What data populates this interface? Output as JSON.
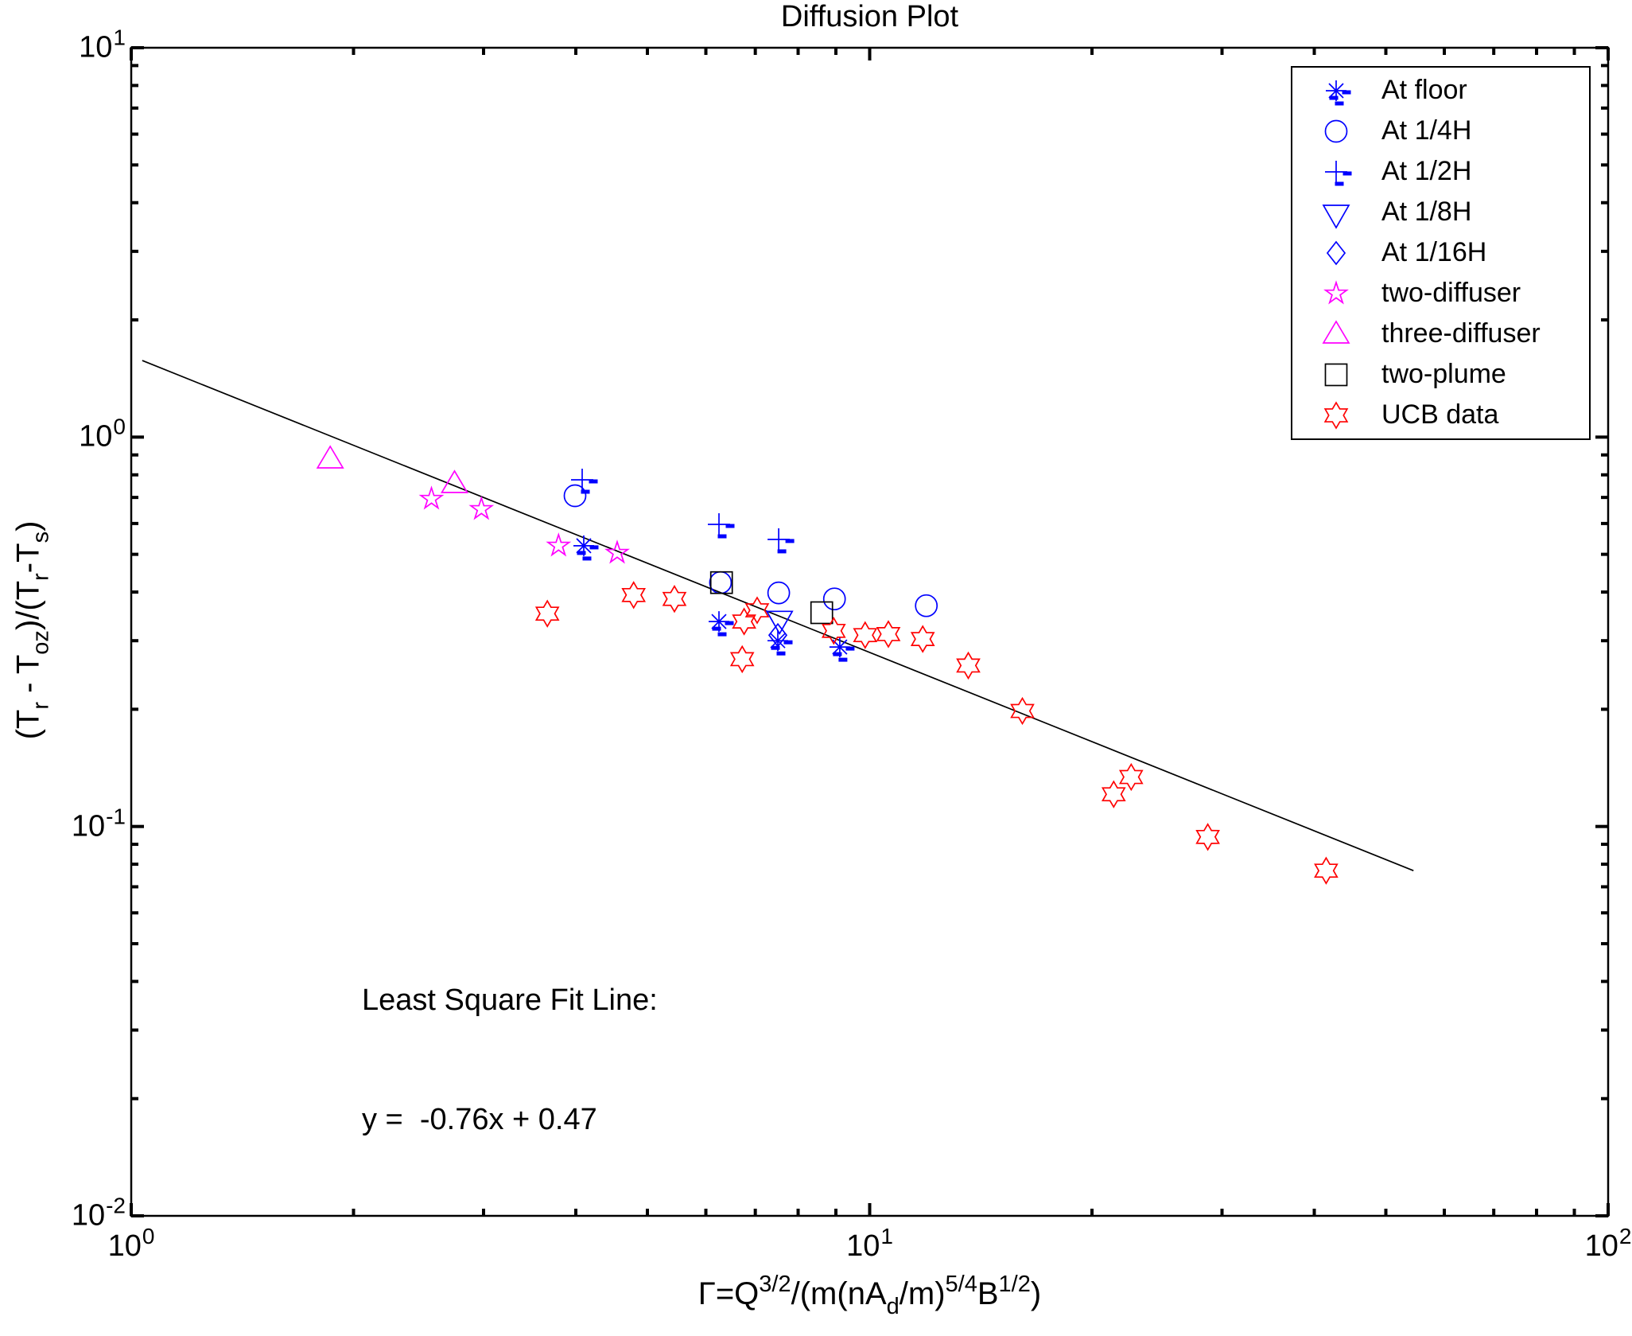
{
  "title": "Diffusion Plot",
  "axes": {
    "x": {
      "scale": "log",
      "range": [
        1,
        100
      ],
      "tick_exponents": [
        0,
        1,
        2
      ],
      "label_rich": [
        {
          "t": "Γ=Q"
        },
        {
          "sup": "3/2"
        },
        {
          "t": "/(m(nA"
        },
        {
          "sub": "d"
        },
        {
          "t": "/m)"
        },
        {
          "sup": "5/4"
        },
        {
          "t": "B"
        },
        {
          "sup": "1/2"
        },
        {
          "t": ")"
        }
      ]
    },
    "y": {
      "scale": "log",
      "range": [
        0.01,
        10
      ],
      "tick_exponents": [
        1,
        0,
        -1,
        -2
      ],
      "label_rich": [
        {
          "t": "(T"
        },
        {
          "sub": "r"
        },
        {
          "t": " - T"
        },
        {
          "sub": "oz"
        },
        {
          "t": ")/(T"
        },
        {
          "sub": "r"
        },
        {
          "t": "-T"
        },
        {
          "sub": "s"
        },
        {
          "t": ")"
        }
      ]
    }
  },
  "annotation": {
    "line1": "Least Square Fit Line:",
    "line2": "y =  -0.76x + 0.47"
  },
  "legend": {
    "items": [
      {
        "label": "At floor",
        "marker": "asterisk-dashed",
        "color": "#0000ff"
      },
      {
        "label": "At 1/4H",
        "marker": "circle",
        "color": "#0000ff"
      },
      {
        "label": "At 1/2H",
        "marker": "plus-dashed",
        "color": "#0000ff"
      },
      {
        "label": "At 1/8H",
        "marker": "triangle-down",
        "color": "#0000ff"
      },
      {
        "label": "At 1/16H",
        "marker": "diamond",
        "color": "#0000ff"
      },
      {
        "label": "two-diffuser",
        "marker": "star5",
        "color": "#ff00ff"
      },
      {
        "label": "three-diffuser",
        "marker": "triangle-up",
        "color": "#ff00ff"
      },
      {
        "label": "two-plume",
        "marker": "square",
        "color": "#000000"
      },
      {
        "label": "UCB data",
        "marker": "star6",
        "color": "#ff0000"
      }
    ]
  },
  "colors": {
    "blue": "#0000ff",
    "magenta": "#ff00ff",
    "red": "#ff0000",
    "black": "#000000",
    "background": "#ffffff"
  },
  "chart_data": {
    "type": "scatter",
    "title": "Diffusion Plot",
    "xlabel": "Gamma = Q^(3/2)/(m(nA_d/m)^(5/4)B^(1/2))",
    "ylabel": "(T_r - T_oz)/(T_r - T_s)",
    "xlim": [
      1,
      100
    ],
    "ylim": [
      0.01,
      10
    ],
    "log_log": true,
    "grid": false,
    "legend_position": "upper right",
    "series": [
      {
        "name": "At floor",
        "marker": "asterisk-dashed",
        "color": "#0000ff",
        "points": [
          [
            4.1,
            0.526
          ],
          [
            6.25,
            0.336
          ],
          [
            7.51,
            0.3
          ],
          [
            9.11,
            0.289
          ]
        ]
      },
      {
        "name": "At 1/4H",
        "marker": "circle",
        "color": "#0000ff",
        "points": [
          [
            3.99,
            0.707
          ],
          [
            6.28,
            0.423
          ],
          [
            7.53,
            0.398
          ],
          [
            8.96,
            0.384
          ],
          [
            11.93,
            0.369
          ]
        ]
      },
      {
        "name": "At 1/2H",
        "marker": "plus-dashed",
        "color": "#0000ff",
        "points": [
          [
            4.08,
            0.777
          ],
          [
            6.25,
            0.597
          ],
          [
            7.53,
            0.546
          ]
        ]
      },
      {
        "name": "At 1/8H",
        "marker": "triangle-down",
        "color": "#0000ff",
        "points": [
          [
            7.55,
            0.342
          ]
        ]
      },
      {
        "name": "At 1/16H",
        "marker": "diamond",
        "color": "#0000ff",
        "points": [
          [
            7.51,
            0.31
          ]
        ]
      },
      {
        "name": "two-diffuser",
        "marker": "star5",
        "color": "#ff00ff",
        "points": [
          [
            2.55,
            0.694
          ],
          [
            2.98,
            0.653
          ],
          [
            3.79,
            0.526
          ],
          [
            4.55,
            0.504
          ]
        ]
      },
      {
        "name": "three-diffuser",
        "marker": "triangle-up",
        "color": "#ff00ff",
        "points": [
          [
            1.86,
            0.878
          ],
          [
            2.74,
            0.759
          ]
        ]
      },
      {
        "name": "two-plume",
        "marker": "square",
        "color": "#000000",
        "points": [
          [
            6.3,
            0.423
          ],
          [
            8.61,
            0.354
          ]
        ]
      },
      {
        "name": "UCB data",
        "marker": "star6",
        "color": "#ff0000",
        "points": [
          [
            3.66,
            0.352
          ],
          [
            4.79,
            0.393
          ],
          [
            5.44,
            0.384
          ],
          [
            6.72,
            0.269
          ],
          [
            6.76,
            0.336
          ],
          [
            7.04,
            0.359
          ],
          [
            8.94,
            0.318
          ],
          [
            9.86,
            0.31
          ],
          [
            10.6,
            0.312
          ],
          [
            11.8,
            0.303
          ],
          [
            13.6,
            0.259
          ],
          [
            16.1,
            0.198
          ],
          [
            21.4,
            0.121
          ],
          [
            22.6,
            0.134
          ],
          [
            28.7,
            0.094
          ],
          [
            41.5,
            0.077
          ]
        ]
      }
    ],
    "fit_line": {
      "label_slope": -0.76,
      "label_intercept": 0.47,
      "x_start": 1.035,
      "y_start": 1.573,
      "x_end": 54.5,
      "y_end": 0.077
    }
  }
}
